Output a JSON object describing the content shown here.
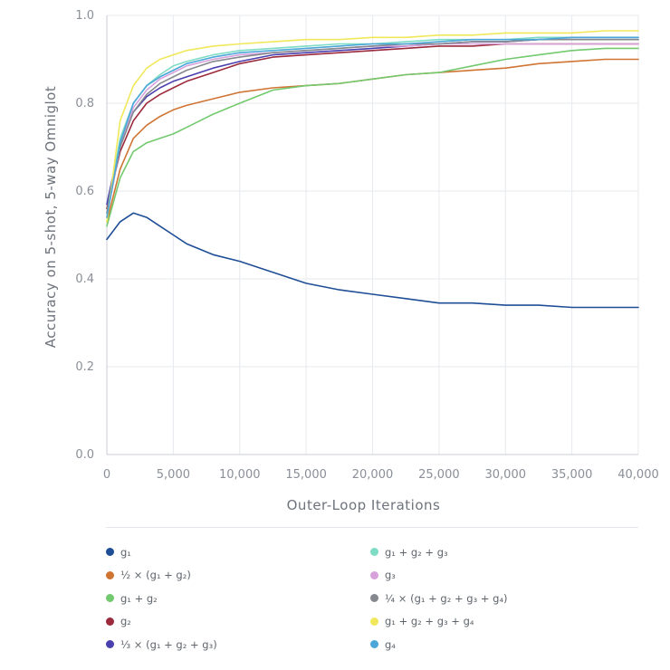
{
  "chart_data": {
    "type": "line",
    "xlabel": "Outer-Loop Iterations",
    "ylabel": "Accuracy on 5-shot, 5-way Omniglot",
    "xlim": [
      0,
      40000
    ],
    "ylim": [
      0,
      1.0
    ],
    "x_ticks": [
      0,
      5000,
      10000,
      15000,
      20000,
      25000,
      30000,
      35000,
      40000
    ],
    "x_tick_labels": [
      "0",
      "5,000",
      "10,000",
      "15,000",
      "20,000",
      "25,000",
      "30,000",
      "35,000",
      "40,000"
    ],
    "y_ticks": [
      0,
      0.2,
      0.4,
      0.6,
      0.8,
      1.0
    ],
    "y_tick_labels": [
      "0.0",
      "0.2",
      "0.4",
      "0.6",
      "0.8",
      "1.0"
    ],
    "grid": true,
    "legend_position": "bottom",
    "x": [
      0,
      1000,
      2000,
      3000,
      4000,
      5000,
      6000,
      8000,
      10000,
      12500,
      15000,
      17500,
      20000,
      22500,
      25000,
      27500,
      30000,
      32500,
      35000,
      37500,
      40000
    ],
    "series": [
      {
        "name": "g₁",
        "color": "#1f4e96",
        "values": [
          0.49,
          0.53,
          0.55,
          0.54,
          0.52,
          0.5,
          0.48,
          0.455,
          0.44,
          0.415,
          0.39,
          0.375,
          0.365,
          0.355,
          0.345,
          0.345,
          0.34,
          0.34,
          0.335,
          0.335,
          0.335
        ]
      },
      {
        "name": "½ × (g₁ + g₂)",
        "color": "#cf7433",
        "values": [
          0.53,
          0.65,
          0.72,
          0.75,
          0.77,
          0.785,
          0.795,
          0.81,
          0.825,
          0.835,
          0.84,
          0.845,
          0.855,
          0.865,
          0.87,
          0.875,
          0.88,
          0.89,
          0.895,
          0.9,
          0.9
        ]
      },
      {
        "name": "g₁ + g₂",
        "color": "#72c96e",
        "values": [
          0.52,
          0.63,
          0.69,
          0.71,
          0.72,
          0.73,
          0.745,
          0.775,
          0.8,
          0.83,
          0.84,
          0.845,
          0.855,
          0.865,
          0.87,
          0.885,
          0.9,
          0.91,
          0.92,
          0.925,
          0.925
        ]
      },
      {
        "name": "g₂",
        "color": "#9b2a3c",
        "values": [
          0.56,
          0.69,
          0.76,
          0.8,
          0.82,
          0.835,
          0.85,
          0.87,
          0.89,
          0.905,
          0.91,
          0.915,
          0.92,
          0.925,
          0.93,
          0.93,
          0.935,
          0.935,
          0.935,
          0.935,
          0.935
        ]
      },
      {
        "name": "⅓ × (g₁ + g₂ + g₃)",
        "color": "#4a3fae",
        "values": [
          0.57,
          0.71,
          0.78,
          0.815,
          0.835,
          0.85,
          0.86,
          0.88,
          0.895,
          0.91,
          0.915,
          0.92,
          0.925,
          0.93,
          0.935,
          0.94,
          0.94,
          0.945,
          0.945,
          0.945,
          0.945
        ]
      },
      {
        "name": "g₁ + g₂ + g₃",
        "color": "#7fdcc4",
        "values": [
          0.55,
          0.72,
          0.8,
          0.84,
          0.865,
          0.885,
          0.895,
          0.91,
          0.92,
          0.925,
          0.93,
          0.935,
          0.935,
          0.94,
          0.945,
          0.945,
          0.945,
          0.95,
          0.95,
          0.95,
          0.95
        ]
      },
      {
        "name": "g₃",
        "color": "#d7a2dc",
        "values": [
          0.54,
          0.7,
          0.79,
          0.83,
          0.855,
          0.87,
          0.885,
          0.9,
          0.91,
          0.915,
          0.92,
          0.925,
          0.93,
          0.93,
          0.935,
          0.935,
          0.935,
          0.935,
          0.935,
          0.935,
          0.935
        ]
      },
      {
        "name": "¼ × (g₁ + g₂ + g₃ + g₄)",
        "color": "#85888e",
        "values": [
          0.55,
          0.7,
          0.78,
          0.82,
          0.845,
          0.86,
          0.875,
          0.895,
          0.905,
          0.915,
          0.92,
          0.925,
          0.93,
          0.935,
          0.935,
          0.94,
          0.94,
          0.945,
          0.945,
          0.945,
          0.945
        ]
      },
      {
        "name": "g₁ + g₂ + g₃ + g₄",
        "color": "#f0e85a",
        "values": [
          0.53,
          0.76,
          0.84,
          0.88,
          0.9,
          0.91,
          0.92,
          0.93,
          0.935,
          0.94,
          0.945,
          0.945,
          0.95,
          0.95,
          0.955,
          0.955,
          0.96,
          0.96,
          0.96,
          0.965,
          0.965
        ]
      },
      {
        "name": "g₄",
        "color": "#4aa7d8",
        "values": [
          0.54,
          0.71,
          0.8,
          0.84,
          0.86,
          0.875,
          0.89,
          0.905,
          0.915,
          0.92,
          0.925,
          0.93,
          0.935,
          0.935,
          0.94,
          0.945,
          0.945,
          0.945,
          0.95,
          0.95,
          0.95
        ]
      }
    ]
  }
}
